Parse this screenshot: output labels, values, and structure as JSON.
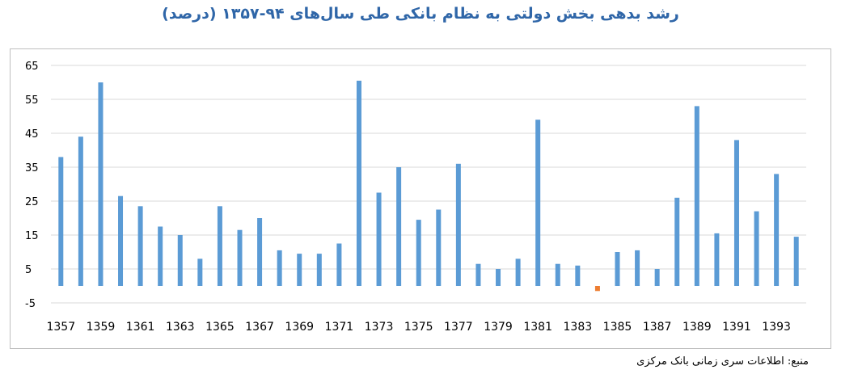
{
  "title": "رشد بدهی بخش دولتی به نظام بانکی طی سال‌های ۹۴-۱۳۵۷ (درصد)",
  "source": "منبع: اطلاعات سری زمانی بانک مرکزی",
  "colors": {
    "positive": "#5b9bd5",
    "negative": "#ed7d31",
    "grid": "#d9d9d9",
    "title": "#2f66a8"
  },
  "chart_data": {
    "type": "bar",
    "title": "رشد بدهی بخش دولتی به نظام بانکی طی سال‌های ۹۴-۱۳۵۷ (درصد)",
    "xlabel": "",
    "ylabel": "",
    "ylim": [
      -5,
      65
    ],
    "yticks": [
      -5,
      5,
      15,
      25,
      35,
      45,
      55,
      65
    ],
    "ytick_labels": [
      "-5",
      "5",
      "15",
      "25",
      "35",
      "45",
      "55",
      "65"
    ],
    "grid": true,
    "legend": "none",
    "categories": [
      "1357",
      "1358",
      "1359",
      "1360",
      "1361",
      "1362",
      "1363",
      "1364",
      "1365",
      "1366",
      "1367",
      "1368",
      "1369",
      "1370",
      "1371",
      "1372",
      "1373",
      "1374",
      "1375",
      "1376",
      "1377",
      "1378",
      "1379",
      "1380",
      "1381",
      "1382",
      "1383",
      "1384",
      "1385",
      "1386",
      "1387",
      "1388",
      "1389",
      "1390",
      "1391",
      "1392",
      "1393",
      "1394"
    ],
    "xtick_labels": [
      "1357",
      "",
      "1359",
      "",
      "1361",
      "",
      "1363",
      "",
      "1365",
      "",
      "1367",
      "",
      "1369",
      "",
      "1371",
      "",
      "1373",
      "",
      "1375",
      "",
      "1377",
      "",
      "1379",
      "",
      "1381",
      "",
      "1383",
      "",
      "1385",
      "",
      "1387",
      "",
      "1389",
      "",
      "1391",
      "",
      "1393",
      ""
    ],
    "values": [
      38,
      44,
      60,
      26.5,
      23.5,
      17.5,
      15,
      8,
      23.5,
      16.5,
      20,
      10.5,
      9.5,
      9.5,
      12.5,
      60.5,
      27.5,
      35,
      19.5,
      22.5,
      36,
      6.5,
      5,
      8,
      49,
      6.5,
      6,
      -1.5,
      10,
      10.5,
      5,
      26,
      53,
      15.5,
      43,
      22,
      33,
      14.5
    ]
  }
}
